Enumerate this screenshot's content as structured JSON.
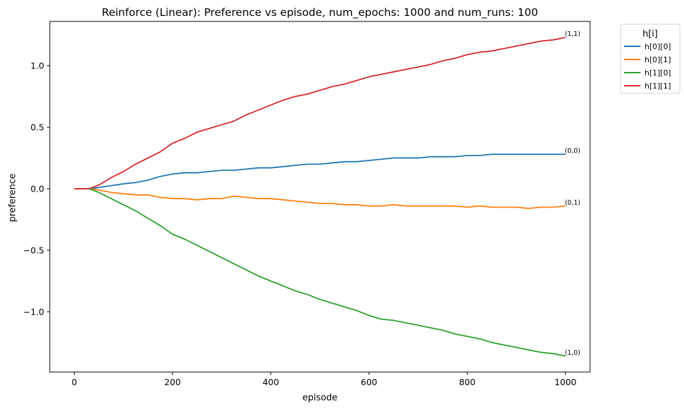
{
  "chart_data": {
    "type": "line",
    "title": "Reinforce (Linear): Preference vs episode, num_epochs: 1000 and num_runs: 100",
    "xlabel": "episode",
    "ylabel": "preference",
    "xlim": [
      -50,
      1050
    ],
    "ylim": [
      -1.49,
      1.36
    ],
    "xticks": [
      0,
      200,
      400,
      600,
      800,
      1000
    ],
    "yticks": [
      -1.0,
      -0.5,
      0.0,
      0.5,
      1.0
    ],
    "xtick_labels": [
      "0",
      "200",
      "400",
      "600",
      "800",
      "1000"
    ],
    "ytick_labels": [
      "−1.0",
      "−0.5",
      "0.0",
      "0.5",
      "1.0"
    ],
    "grid": false,
    "legend": {
      "title": "h[i]",
      "placement": "outside top-right"
    },
    "series": [
      {
        "name": "h[0][0]",
        "color": "#1f77b4",
        "end_label": "(0,0)",
        "x": [
          0,
          30,
          50,
          75,
          100,
          125,
          150,
          175,
          200,
          225,
          250,
          275,
          300,
          325,
          350,
          375,
          400,
          425,
          450,
          475,
          500,
          525,
          550,
          575,
          600,
          625,
          650,
          675,
          700,
          725,
          750,
          775,
          800,
          825,
          850,
          875,
          900,
          925,
          950,
          975,
          1000
        ],
        "values": [
          0.0,
          0.0,
          0.01,
          0.025,
          0.04,
          0.05,
          0.07,
          0.1,
          0.12,
          0.13,
          0.13,
          0.14,
          0.15,
          0.15,
          0.16,
          0.17,
          0.17,
          0.18,
          0.19,
          0.2,
          0.2,
          0.21,
          0.22,
          0.22,
          0.23,
          0.24,
          0.25,
          0.25,
          0.25,
          0.26,
          0.26,
          0.26,
          0.27,
          0.27,
          0.28,
          0.28,
          0.28,
          0.28,
          0.28,
          0.28,
          0.28
        ]
      },
      {
        "name": "h[0][1]",
        "color": "#ff7f0e",
        "end_label": "(0,1)",
        "x": [
          0,
          30,
          50,
          75,
          100,
          125,
          150,
          175,
          200,
          225,
          250,
          275,
          300,
          325,
          350,
          375,
          400,
          425,
          450,
          475,
          500,
          525,
          550,
          575,
          600,
          625,
          650,
          675,
          700,
          725,
          750,
          775,
          800,
          825,
          850,
          875,
          900,
          925,
          950,
          975,
          1000
        ],
        "values": [
          0.0,
          0.0,
          -0.01,
          -0.03,
          -0.04,
          -0.05,
          -0.05,
          -0.07,
          -0.08,
          -0.08,
          -0.09,
          -0.08,
          -0.08,
          -0.06,
          -0.07,
          -0.08,
          -0.08,
          -0.09,
          -0.1,
          -0.11,
          -0.12,
          -0.12,
          -0.13,
          -0.13,
          -0.14,
          -0.14,
          -0.13,
          -0.14,
          -0.14,
          -0.14,
          -0.14,
          -0.14,
          -0.15,
          -0.14,
          -0.15,
          -0.15,
          -0.15,
          -0.16,
          -0.15,
          -0.15,
          -0.14
        ]
      },
      {
        "name": "h[1][0]",
        "color": "#2ca02c",
        "end_label": "(1,0)",
        "x": [
          0,
          30,
          50,
          75,
          100,
          125,
          150,
          175,
          200,
          225,
          250,
          275,
          300,
          325,
          350,
          375,
          400,
          425,
          450,
          475,
          500,
          525,
          550,
          575,
          600,
          625,
          650,
          675,
          700,
          725,
          750,
          775,
          800,
          825,
          850,
          875,
          900,
          925,
          950,
          975,
          1000
        ],
        "values": [
          0.0,
          0.0,
          -0.03,
          -0.08,
          -0.13,
          -0.18,
          -0.24,
          -0.3,
          -0.37,
          -0.41,
          -0.46,
          -0.51,
          -0.56,
          -0.61,
          -0.66,
          -0.71,
          -0.75,
          -0.79,
          -0.83,
          -0.86,
          -0.9,
          -0.93,
          -0.96,
          -0.99,
          -1.03,
          -1.06,
          -1.07,
          -1.09,
          -1.11,
          -1.13,
          -1.15,
          -1.18,
          -1.2,
          -1.22,
          -1.25,
          -1.27,
          -1.29,
          -1.31,
          -1.33,
          -1.34,
          -1.36
        ]
      },
      {
        "name": "h[1][1]",
        "color": "#d62728",
        "end_label": "(1,1)",
        "x": [
          0,
          30,
          50,
          75,
          100,
          125,
          150,
          175,
          200,
          225,
          250,
          275,
          300,
          325,
          350,
          375,
          400,
          425,
          450,
          475,
          500,
          525,
          550,
          575,
          600,
          625,
          650,
          675,
          700,
          725,
          750,
          775,
          800,
          825,
          850,
          875,
          900,
          925,
          950,
          975,
          1000
        ],
        "values": [
          0.0,
          0.0,
          0.03,
          0.09,
          0.14,
          0.2,
          0.25,
          0.3,
          0.37,
          0.41,
          0.46,
          0.49,
          0.52,
          0.55,
          0.6,
          0.64,
          0.68,
          0.72,
          0.75,
          0.77,
          0.8,
          0.83,
          0.85,
          0.88,
          0.91,
          0.93,
          0.95,
          0.97,
          0.99,
          1.01,
          1.04,
          1.06,
          1.09,
          1.11,
          1.12,
          1.14,
          1.16,
          1.18,
          1.2,
          1.21,
          1.23
        ]
      }
    ]
  }
}
